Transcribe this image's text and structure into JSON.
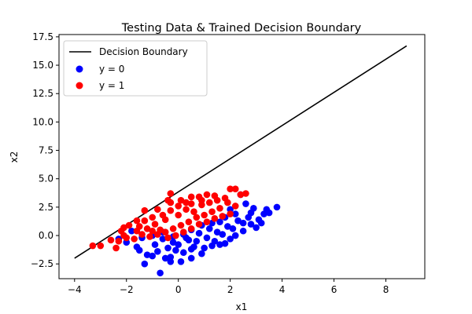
{
  "chart_data": {
    "type": "scatter",
    "title": "Testing Data & Trained Decision Boundary",
    "xlabel": "x1",
    "ylabel": "x2",
    "xlim": [
      -4.6,
      9.5
    ],
    "ylim": [
      -3.8,
      17.7
    ],
    "x_ticks": [
      -4,
      -2,
      0,
      2,
      4,
      6,
      8
    ],
    "y_ticks": [
      -2.5,
      0.0,
      2.5,
      5.0,
      7.5,
      10.0,
      12.5,
      15.0,
      17.5
    ],
    "x_tick_labels": [
      "−4",
      "−2",
      "0",
      "2",
      "4",
      "6",
      "8"
    ],
    "y_tick_labels": [
      "−2.5",
      "0.0",
      "2.5",
      "5.0",
      "7.5",
      "10.0",
      "12.5",
      "15.0",
      "17.5"
    ],
    "grid": false,
    "legend_position": "top-left",
    "line": {
      "name": "Decision Boundary",
      "color": "#000000",
      "x": [
        -4.0,
        8.8
      ],
      "y": [
        -2.0,
        16.7
      ]
    },
    "series": [
      {
        "name": "y = 0",
        "color": "#0000ff",
        "points": [
          [
            -1.3,
            -2.5
          ],
          [
            -0.7,
            -3.3
          ],
          [
            -0.3,
            -2.3
          ],
          [
            -1.0,
            -1.8
          ],
          [
            0.2,
            -1.5
          ],
          [
            -0.5,
            -2.0
          ],
          [
            0.5,
            -1.2
          ],
          [
            0.9,
            -1.6
          ],
          [
            1.3,
            -0.9
          ],
          [
            1.8,
            -0.7
          ],
          [
            2.2,
            0.0
          ],
          [
            2.5,
            0.4
          ],
          [
            2.8,
            1.0
          ],
          [
            3.1,
            1.4
          ],
          [
            3.3,
            1.9
          ],
          [
            3.8,
            2.5
          ],
          [
            3.5,
            2.0
          ],
          [
            2.9,
            2.4
          ],
          [
            2.6,
            2.8
          ],
          [
            2.4,
            3.6
          ],
          [
            2.0,
            2.3
          ],
          [
            1.6,
            1.2
          ],
          [
            1.2,
            0.6
          ],
          [
            0.8,
            0.2
          ],
          [
            0.4,
            -0.4
          ],
          [
            0.0,
            -0.8
          ],
          [
            -0.4,
            -1.1
          ],
          [
            -0.8,
            -1.4
          ],
          [
            -1.2,
            -1.7
          ],
          [
            -1.6,
            -1.0
          ],
          [
            -2.0,
            -0.6
          ],
          [
            -2.3,
            -0.3
          ],
          [
            -1.8,
            0.4
          ],
          [
            -1.4,
            -0.2
          ],
          [
            -1.0,
            0.0
          ],
          [
            -0.6,
            -0.3
          ],
          [
            -0.2,
            -0.6
          ],
          [
            0.3,
            -0.2
          ],
          [
            0.7,
            -0.5
          ],
          [
            1.1,
            -0.2
          ],
          [
            1.5,
            0.3
          ],
          [
            1.9,
            0.8
          ],
          [
            2.3,
            1.3
          ],
          [
            2.7,
            1.6
          ],
          [
            3.0,
            0.7
          ],
          [
            2.0,
            -0.3
          ],
          [
            1.4,
            -0.5
          ],
          [
            0.6,
            -1.0
          ],
          [
            -0.1,
            -1.3
          ],
          [
            -0.9,
            -0.8
          ],
          [
            -1.5,
            -1.3
          ],
          [
            -0.3,
            -1.9
          ],
          [
            0.1,
            -2.3
          ],
          [
            0.5,
            -2.0
          ],
          [
            1.0,
            -1.1
          ],
          [
            1.7,
            0.1
          ],
          [
            2.1,
            0.6
          ],
          [
            2.5,
            1.1
          ],
          [
            3.2,
            1.1
          ],
          [
            3.4,
            2.3
          ],
          [
            2.8,
            2.0
          ],
          [
            2.2,
            1.9
          ],
          [
            1.8,
            1.6
          ],
          [
            1.3,
            1.1
          ],
          [
            0.9,
            0.9
          ],
          [
            0.5,
            0.5
          ],
          [
            0.2,
            0.1
          ],
          [
            -0.2,
            -0.1
          ],
          [
            -0.6,
            0.3
          ],
          [
            1.6,
            -0.8
          ]
        ]
      },
      {
        "name": "y = 1",
        "color": "#ff0000",
        "points": [
          [
            -3.3,
            -0.9
          ],
          [
            -3.0,
            -0.9
          ],
          [
            -2.6,
            -0.4
          ],
          [
            -2.3,
            -0.5
          ],
          [
            -2.4,
            -1.1
          ],
          [
            -2.1,
            0.0
          ],
          [
            -2.1,
            0.7
          ],
          [
            -1.9,
            0.9
          ],
          [
            -1.6,
            0.4
          ],
          [
            -1.3,
            1.3
          ],
          [
            -1.3,
            2.2
          ],
          [
            -1.0,
            1.6
          ],
          [
            -0.8,
            2.3
          ],
          [
            -0.5,
            1.4
          ],
          [
            -0.3,
            2.9
          ],
          [
            -0.3,
            3.7
          ],
          [
            0.0,
            2.6
          ],
          [
            0.1,
            3.1
          ],
          [
            0.5,
            2.8
          ],
          [
            0.5,
            3.4
          ],
          [
            0.8,
            3.4
          ],
          [
            1.1,
            3.6
          ],
          [
            1.4,
            3.5
          ],
          [
            1.8,
            3.3
          ],
          [
            2.0,
            4.1
          ],
          [
            2.2,
            4.1
          ],
          [
            2.4,
            3.6
          ],
          [
            2.6,
            3.7
          ],
          [
            1.6,
            2.4
          ],
          [
            1.3,
            2.1
          ],
          [
            1.0,
            1.8
          ],
          [
            0.7,
            1.6
          ],
          [
            0.4,
            1.2
          ],
          [
            0.1,
            0.9
          ],
          [
            -0.2,
            0.6
          ],
          [
            -0.5,
            0.3
          ],
          [
            -0.8,
            0.1
          ],
          [
            -1.1,
            -0.1
          ],
          [
            -1.4,
            0.1
          ],
          [
            -1.7,
            -0.3
          ],
          [
            -2.0,
            -0.2
          ],
          [
            -2.2,
            0.4
          ],
          [
            -1.5,
            0.8
          ],
          [
            -1.2,
            0.6
          ],
          [
            -0.9,
            1.0
          ],
          [
            -0.6,
            1.8
          ],
          [
            -0.3,
            2.2
          ],
          [
            0.0,
            1.8
          ],
          [
            0.3,
            2.3
          ],
          [
            0.6,
            2.1
          ],
          [
            0.9,
            2.7
          ],
          [
            1.2,
            2.9
          ],
          [
            1.5,
            3.1
          ],
          [
            1.9,
            2.9
          ],
          [
            2.2,
            2.6
          ],
          [
            2.0,
            1.9
          ],
          [
            1.7,
            1.7
          ],
          [
            1.4,
            1.5
          ],
          [
            1.1,
            1.2
          ],
          [
            0.8,
            1.0
          ],
          [
            0.5,
            0.6
          ],
          [
            0.2,
            0.3
          ],
          [
            -0.1,
            0.0
          ],
          [
            -0.4,
            -0.2
          ],
          [
            -0.7,
            0.5
          ],
          [
            -1.0,
            0.4
          ],
          [
            -1.6,
            1.3
          ],
          [
            -0.4,
            3.1
          ],
          [
            0.3,
            2.9
          ],
          [
            0.9,
            3.1
          ]
        ]
      }
    ]
  }
}
